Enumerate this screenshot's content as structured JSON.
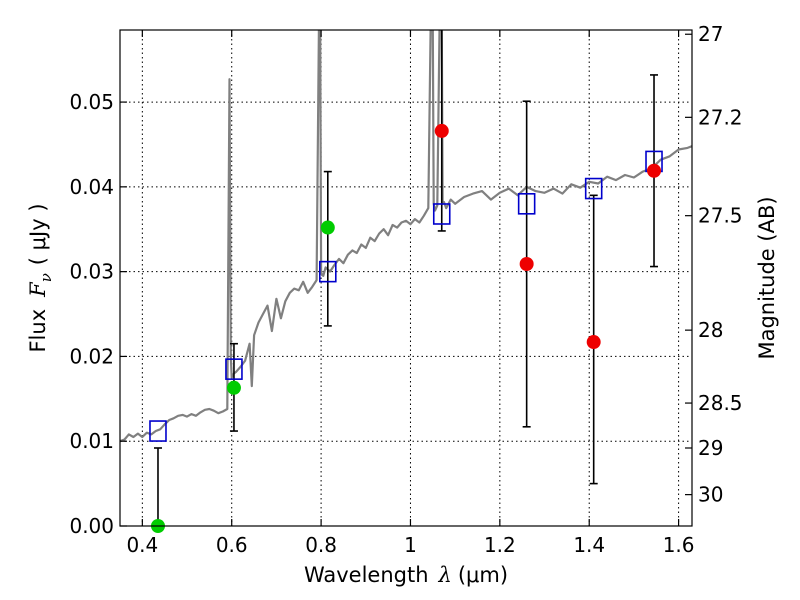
{
  "chart_data": {
    "type": "scatter",
    "xlabel": "Wavelength",
    "xlabel_symbol": "λ",
    "xlabel_unit": "(μm)",
    "ylabel": "Flux",
    "ylabel_symbol": "F",
    "ylabel_subscript": "ν",
    "ylabel_unit": "( μJy )",
    "ylabel_right": "Magnitude (AB)",
    "xlim": [
      0.35,
      1.63
    ],
    "ylim": [
      0.0,
      0.0585
    ],
    "grid": true,
    "x_ticks": [
      0.4,
      0.6,
      0.8,
      1.0,
      1.2,
      1.4,
      1.6
    ],
    "x_tick_labels": [
      "0.4",
      "0.6",
      "0.8",
      "1",
      "1.2",
      "1.4",
      "1.6"
    ],
    "y_ticks": [
      0.0,
      0.01,
      0.02,
      0.03,
      0.04,
      0.05
    ],
    "y_tick_labels": [
      "0.00",
      "0.01",
      "0.02",
      "0.03",
      "0.04",
      "0.05"
    ],
    "right_ticks": [
      {
        "label": "27",
        "flux": 0.058
      },
      {
        "label": "27.2",
        "flux": 0.0482
      },
      {
        "label": "27.5",
        "flux": 0.0366
      },
      {
        "label": "28",
        "flux": 0.0231
      },
      {
        "label": "28.5",
        "flux": 0.0145
      },
      {
        "label": "29",
        "flux": 0.0092
      },
      {
        "label": "30",
        "flux": 0.0037
      }
    ],
    "colors": {
      "model": "#808080",
      "model_photometry": "#0000cc",
      "green_points": "#00cc00",
      "red_points": "#ee0000",
      "errorbar": "#000000"
    },
    "series": [
      {
        "name": "model_spectrum",
        "kind": "line",
        "x": [
          0.35,
          0.36,
          0.37,
          0.38,
          0.39,
          0.4,
          0.41,
          0.42,
          0.43,
          0.44,
          0.45,
          0.46,
          0.47,
          0.48,
          0.49,
          0.5,
          0.51,
          0.52,
          0.53,
          0.54,
          0.55,
          0.56,
          0.57,
          0.58,
          0.59,
          0.595,
          0.598,
          0.6,
          0.605,
          0.61,
          0.62,
          0.63,
          0.64,
          0.645,
          0.65,
          0.66,
          0.67,
          0.68,
          0.69,
          0.7,
          0.71,
          0.72,
          0.73,
          0.74,
          0.75,
          0.76,
          0.77,
          0.78,
          0.79,
          0.795,
          0.798,
          0.8,
          0.802,
          0.805,
          0.81,
          0.82,
          0.83,
          0.84,
          0.85,
          0.86,
          0.87,
          0.88,
          0.89,
          0.9,
          0.91,
          0.92,
          0.93,
          0.94,
          0.95,
          0.96,
          0.97,
          0.98,
          0.99,
          1.0,
          1.01,
          1.02,
          1.03,
          1.04,
          1.045,
          1.048,
          1.05,
          1.052,
          1.055,
          1.06,
          1.065,
          1.068,
          1.07,
          1.072,
          1.075,
          1.08,
          1.09,
          1.1,
          1.12,
          1.14,
          1.16,
          1.18,
          1.2,
          1.22,
          1.24,
          1.26,
          1.28,
          1.3,
          1.32,
          1.34,
          1.36,
          1.38,
          1.4,
          1.42,
          1.44,
          1.46,
          1.48,
          1.5,
          1.52,
          1.54,
          1.56,
          1.58,
          1.6,
          1.62,
          1.63
        ],
        "y": [
          0.01,
          0.0102,
          0.0108,
          0.0105,
          0.0109,
          0.0105,
          0.011,
          0.0108,
          0.0112,
          0.0114,
          0.012,
          0.0125,
          0.0127,
          0.013,
          0.0131,
          0.0129,
          0.0132,
          0.013,
          0.0134,
          0.0137,
          0.0138,
          0.0136,
          0.0133,
          0.0135,
          0.0138,
          0.0527,
          0.02,
          0.0175,
          0.018,
          0.0182,
          0.0188,
          0.0195,
          0.0215,
          0.0165,
          0.0225,
          0.024,
          0.025,
          0.026,
          0.023,
          0.0268,
          0.0245,
          0.0265,
          0.0275,
          0.028,
          0.0278,
          0.0288,
          0.0275,
          0.0282,
          0.029,
          0.0585,
          0.0585,
          0.03,
          0.0296,
          0.0295,
          0.0305,
          0.03,
          0.0308,
          0.0315,
          0.031,
          0.032,
          0.0325,
          0.0322,
          0.0332,
          0.0328,
          0.034,
          0.0336,
          0.0345,
          0.035,
          0.0343,
          0.0355,
          0.0352,
          0.0358,
          0.036,
          0.0356,
          0.0362,
          0.0358,
          0.0366,
          0.0375,
          0.0585,
          0.0585,
          0.0585,
          0.038,
          0.0372,
          0.0378,
          0.0585,
          0.0585,
          0.0585,
          0.038,
          0.0382,
          0.0375,
          0.0385,
          0.038,
          0.0388,
          0.0392,
          0.0395,
          0.0385,
          0.0393,
          0.0398,
          0.039,
          0.04,
          0.0395,
          0.0393,
          0.0398,
          0.0392,
          0.0403,
          0.0399,
          0.0406,
          0.0404,
          0.0412,
          0.0408,
          0.0414,
          0.0411,
          0.0418,
          0.0422,
          0.0432,
          0.0436,
          0.0444,
          0.0446,
          0.0448
        ]
      },
      {
        "name": "model_photometry",
        "kind": "open_square",
        "x": [
          0.435,
          0.605,
          0.815,
          1.07,
          1.26,
          1.41,
          1.545
        ],
        "y": [
          0.0112,
          0.0185,
          0.03,
          0.0368,
          0.038,
          0.0398,
          0.043
        ]
      },
      {
        "name": "observed_green",
        "kind": "filled_circle",
        "x": [
          0.435,
          0.605,
          0.815
        ],
        "y": [
          0.0,
          0.0163,
          0.0352
        ],
        "yerr_low": [
          0.0,
          0.0112,
          0.0236
        ],
        "yerr_high": [
          0.0092,
          0.0215,
          0.0418
        ]
      },
      {
        "name": "observed_red",
        "kind": "filled_circle",
        "x": [
          1.07,
          1.26,
          1.41,
          1.545
        ],
        "y": [
          0.0466,
          0.0309,
          0.0217,
          0.0419
        ],
        "yerr_low": [
          0.0348,
          0.0117,
          0.005,
          0.0306
        ],
        "yerr_high": [
          0.0585,
          0.0501,
          0.039,
          0.0532
        ]
      }
    ]
  }
}
